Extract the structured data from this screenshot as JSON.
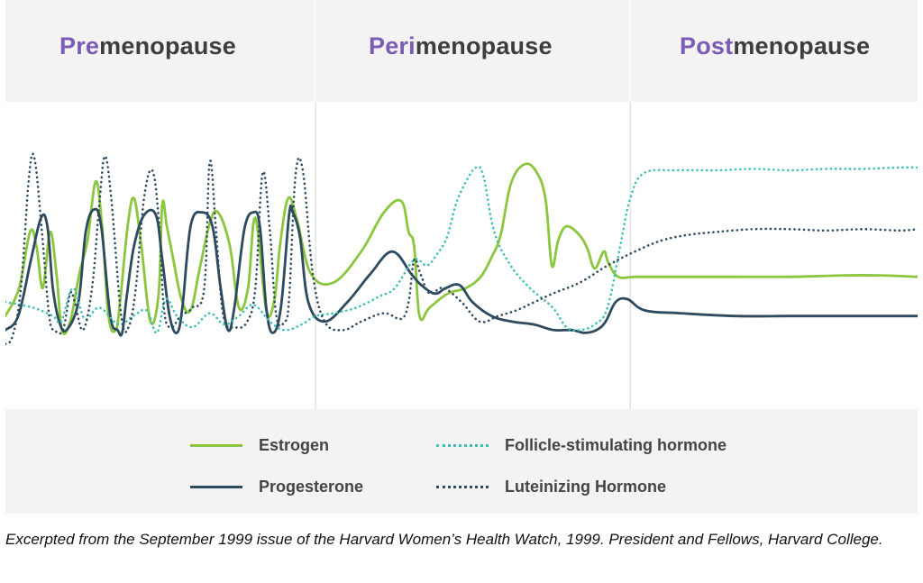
{
  "phases": [
    {
      "prefix": "Pre",
      "suffix": "menopause"
    },
    {
      "prefix": "Peri",
      "suffix": "menopause"
    },
    {
      "prefix": "Post",
      "suffix": "menopause"
    }
  ],
  "caption": "Excerpted from the September 1999 issue of the Harvard Women’s Health Watch, 1999. President and Fellows, Harvard College.",
  "colors": {
    "phase_prefix": "#7a5bb5",
    "estrogen": "#8cc63f",
    "progesterone": "#2e4a5f",
    "fsh": "#3cc0b4",
    "lh": "#2e4a5f"
  },
  "chart_data": {
    "type": "line",
    "title": "",
    "xlabel": "",
    "ylabel": "",
    "xlim": [
      0,
      100
    ],
    "ylim": [
      0,
      100
    ],
    "grid": false,
    "legend_position": "bottom",
    "phase_boundaries": [
      34,
      68.5
    ],
    "series": [
      {
        "name": "Estrogen",
        "style": "solid",
        "color": "#8cc63f",
        "x": [
          0,
          1.5,
          2.7,
          3.4,
          4.1,
          4.9,
          5.6,
          6.2,
          7.1,
          8.1,
          9,
          9.9,
          10.6,
          11.3,
          12.1,
          12.6,
          13.4,
          14.1,
          14.9,
          15.9,
          16.8,
          17.2,
          17.7,
          18.3,
          19.3,
          20.3,
          21.3,
          22.4,
          23.3,
          24.6,
          25.6,
          26.6,
          27.4,
          28.6,
          29.5,
          30.1,
          31,
          32,
          33.5,
          36,
          39,
          41.5,
          43.4,
          44.2,
          44.8,
          45.4,
          46.5,
          48.5,
          50.5,
          52.1,
          53.3,
          54.3,
          55.4,
          56.8,
          58.1,
          59.2,
          59.9,
          60.6,
          61.5,
          62.9,
          63.8,
          64.6,
          65.6,
          66.1,
          67.2,
          69.2,
          74,
          80,
          86,
          92,
          96,
          100
        ],
        "y": [
          30,
          40,
          60,
          55,
          40,
          60,
          45,
          25,
          28,
          45,
          57,
          78,
          62,
          30,
          25,
          36,
          62,
          72,
          55,
          28,
          38,
          70,
          62,
          52,
          36,
          32,
          47,
          63,
          67,
          55,
          33,
          40,
          65,
          32,
          36,
          55,
          72,
          64,
          45,
          42,
          53,
          67,
          71,
          60,
          55,
          30,
          33,
          38,
          40,
          44,
          51,
          59,
          77,
          84,
          82,
          72,
          48,
          57,
          62,
          59,
          54,
          47,
          53,
          49,
          44,
          44,
          44,
          44,
          44,
          44.5,
          44.5,
          44
        ]
      },
      {
        "name": "Progesterone",
        "style": "solid",
        "color": "#2e4a5f",
        "x": [
          0,
          1.4,
          2.8,
          3.9,
          4.6,
          5.2,
          5.9,
          6.7,
          8,
          8.8,
          9.7,
          10.5,
          11.5,
          12.3,
          12.8,
          13.3,
          14.1,
          15.2,
          16.5,
          17.2,
          18,
          18.8,
          19.4,
          20.3,
          21.5,
          22.7,
          23.6,
          24.4,
          25.1,
          26.2,
          27.2,
          27.9,
          28.6,
          29.3,
          30.2,
          31.1,
          31.5,
          32.3,
          33.2,
          35,
          37.5,
          40,
          42.4,
          44.5,
          45.6,
          47.1,
          48.3,
          49.8,
          51.2,
          53.3,
          55.5,
          57.9,
          60.1,
          62.1,
          63.5,
          64.8,
          65.8,
          66.9,
          68.2,
          70.1,
          74,
          80,
          86,
          92,
          96,
          100
        ],
        "y": [
          25,
          30,
          50,
          65,
          62,
          40,
          28,
          25,
          35,
          60,
          68,
          62,
          30,
          25,
          24,
          37,
          55,
          66,
          66,
          50,
          30,
          24,
          33,
          62,
          67,
          62,
          40,
          25,
          33,
          61,
          67,
          62,
          33,
          24,
          33,
          66,
          67,
          58,
          35,
          28,
          35,
          45,
          53,
          45,
          41,
          38,
          40,
          41,
          35,
          30,
          28,
          27,
          25,
          25,
          24,
          25,
          28,
          35,
          36,
          32,
          31,
          30,
          30,
          30,
          30,
          30
        ]
      },
      {
        "name": "Follicle-stimulating hormone",
        "style": "dotted",
        "color": "#3cc0b4",
        "x": [
          0,
          3,
          5.2,
          6.1,
          7.4,
          8.7,
          10.3,
          12.4,
          14,
          15.5,
          16.6,
          17.6,
          18.8,
          20.5,
          22.4,
          24,
          25.6,
          27.2,
          29,
          30.6,
          32.5,
          34,
          36,
          38.5,
          41,
          42.7,
          44.8,
          46.2,
          47.3,
          48.4,
          49.4,
          50.5,
          51.6,
          52.4,
          53.6,
          55.4,
          57.5,
          60,
          61.5,
          63,
          64.6,
          66,
          67.4,
          68.5,
          70,
          73.5,
          78,
          82,
          86,
          90,
          94,
          98,
          100
        ],
        "y": [
          35,
          33,
          30,
          28,
          40,
          29,
          33,
          27,
          30,
          32,
          24,
          36,
          30,
          26,
          31,
          27,
          30,
          34,
          28,
          25,
          27,
          30,
          31,
          33,
          37,
          40,
          50,
          48,
          52,
          58,
          70,
          78,
          83,
          80,
          60,
          48,
          40,
          33,
          26,
          25,
          27,
          33,
          55,
          72,
          81,
          82,
          82,
          82.5,
          82,
          82.5,
          82.5,
          83,
          83
        ]
      },
      {
        "name": "Luteinizing Hormone",
        "style": "dotted",
        "color": "#2e4a5f",
        "x": [
          0,
          0.8,
          1.7,
          2.6,
          3.2,
          4,
          4.8,
          5.4,
          6.3,
          7.1,
          7.6,
          8.5,
          9.5,
          10.3,
          10.9,
          11.6,
          12.7,
          13.5,
          14.3,
          15.2,
          16.1,
          16.8,
          17.4,
          18.2,
          19.2,
          20.5,
          21.8,
          22.4,
          23.1,
          23.9,
          25.2,
          26.5,
          27.4,
          28.2,
          29,
          29.7,
          30.6,
          31.1,
          31.8,
          32.6,
          33.7,
          35,
          37,
          39,
          41.5,
          43.4,
          44.2,
          44.8,
          45.5,
          46.5,
          48,
          50,
          52,
          54,
          56,
          58,
          60,
          63,
          66,
          69,
          72,
          75,
          78,
          82,
          86,
          90,
          94,
          98,
          100
        ],
        "y": [
          20,
          23,
          40,
          80,
          86,
          60,
          30,
          25,
          25,
          38,
          35,
          25,
          40,
          70,
          87,
          72,
          30,
          26,
          40,
          72,
          82,
          65,
          32,
          26,
          30,
          33,
          40,
          85,
          60,
          30,
          26,
          28,
          40,
          81,
          60,
          30,
          28,
          36,
          80,
          82,
          45,
          28,
          25,
          28,
          31,
          29,
          35,
          50,
          45,
          38,
          40,
          35,
          28,
          30,
          32,
          35,
          38,
          42,
          48,
          53,
          57,
          59,
          60,
          61,
          61,
          60.5,
          61,
          60.5,
          61
        ]
      }
    ]
  }
}
